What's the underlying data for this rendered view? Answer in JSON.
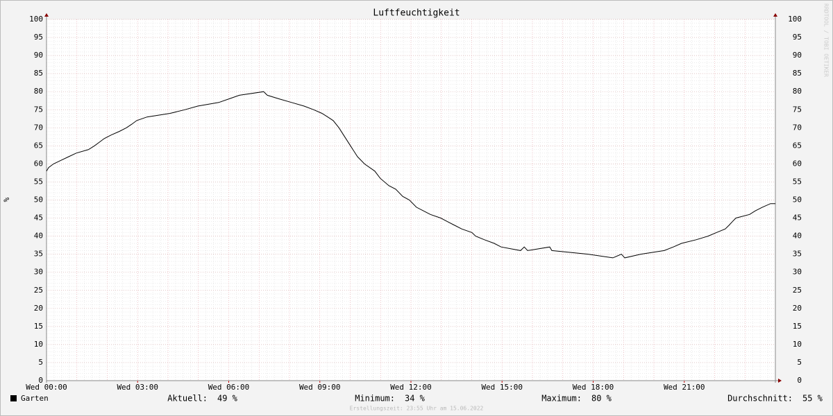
{
  "chart_data": {
    "type": "line",
    "title": "Luftfeuchtigkeit",
    "ylabel": "%",
    "watermark": "RRDTOOL / TOBI OETIKER",
    "xlim": [
      0,
      24
    ],
    "xticks": [
      {
        "value": 0,
        "label": "Wed 00:00"
      },
      {
        "value": 3,
        "label": "Wed 03:00"
      },
      {
        "value": 6,
        "label": "Wed 06:00"
      },
      {
        "value": 9,
        "label": "Wed 09:00"
      },
      {
        "value": 12,
        "label": "Wed 12:00"
      },
      {
        "value": 15,
        "label": "Wed 15:00"
      },
      {
        "value": 18,
        "label": "Wed 18:00"
      },
      {
        "value": 21,
        "label": "Wed 21:00"
      }
    ],
    "ylim": [
      0,
      100
    ],
    "yticks": [
      0,
      5,
      10,
      15,
      20,
      25,
      30,
      35,
      40,
      45,
      50,
      55,
      60,
      65,
      70,
      75,
      80,
      85,
      90,
      95,
      100
    ],
    "grid": true,
    "x": [
      0,
      0.07,
      0.23,
      0.48,
      0.73,
      0.98,
      1.39,
      1.58,
      1.74,
      1.9,
      2.13,
      2.4,
      2.63,
      2.81,
      2.97,
      3.31,
      4.07,
      4.55,
      4.98,
      5.67,
      6.01,
      6.35,
      7.15,
      7.27,
      7.66,
      8.07,
      8.48,
      8.8,
      9.07,
      9.26,
      9.44,
      9.63,
      9.78,
      10.01,
      10.24,
      10.47,
      10.81,
      10.99,
      11.27,
      11.5,
      11.73,
      11.95,
      12.18,
      12.41,
      12.64,
      12.98,
      13.21,
      13.44,
      13.67,
      14.01,
      14.13,
      14.42,
      14.74,
      14.97,
      15.61,
      15.73,
      15.84,
      16.57,
      16.64,
      17.83,
      18.65,
      18.93,
      19.04,
      19.57,
      20.34,
      20.64,
      20.91,
      21.39,
      21.78,
      22.06,
      22.35,
      22.47,
      22.58,
      22.7,
      23.15,
      23.34,
      23.57,
      23.84,
      24
    ],
    "series": [
      {
        "name": "Garten",
        "color": "#000000",
        "values": [
          58,
          59,
          60,
          61,
          62,
          63,
          64,
          65,
          66,
          67,
          68,
          69,
          70,
          71,
          72,
          73,
          74,
          75,
          76,
          77,
          78,
          79,
          80,
          79,
          78,
          77,
          76,
          75,
          74,
          73,
          72,
          70,
          68,
          65,
          62,
          60,
          58,
          56,
          54,
          53,
          51,
          50,
          48,
          47,
          46,
          45,
          44,
          43,
          42,
          41,
          40,
          39,
          38,
          37,
          36,
          37,
          36,
          37,
          36,
          35,
          34,
          35,
          34,
          35,
          36,
          37,
          38,
          39,
          40,
          41,
          42,
          43,
          44,
          45,
          46,
          47,
          48,
          49,
          49
        ]
      }
    ],
    "stats": [
      {
        "label": "Aktuell:",
        "value": "49 %"
      },
      {
        "label": "Minimum:",
        "value": "34 %"
      },
      {
        "label": "Maximum:",
        "value": "80 %"
      },
      {
        "label": "Durchschnitt:",
        "value": "55 %"
      }
    ],
    "footer": "Erstellungszeit: 23:55 Uhr am 15.06.2022"
  }
}
